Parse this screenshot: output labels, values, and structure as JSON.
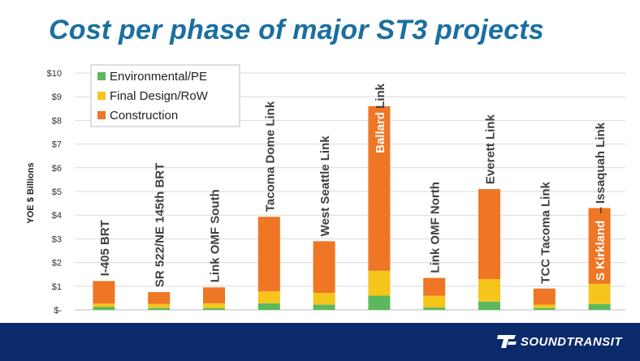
{
  "slide": {
    "title": "Cost per phase of major ST3 projects"
  },
  "footer": {
    "logo_text": "SOUNDTRANSIT"
  },
  "colors": {
    "title": "#1a6fa0",
    "footer_band": "#0a2a6b",
    "environmental": "#5cb85c",
    "final_design": "#f6c51c",
    "construction": "#ee7625"
  },
  "chart_data": {
    "type": "bar",
    "stacked": true,
    "title": "",
    "xlabel": "",
    "ylabel": "YOE $ Billions",
    "ylim": [
      0,
      10
    ],
    "yticks": [
      "$-",
      "$1",
      "$2",
      "$3",
      "$4",
      "$5",
      "$6",
      "$7",
      "$8",
      "$9",
      "$10"
    ],
    "grid": true,
    "legend_position": "top-left",
    "categories": [
      "I-405 BRT",
      "SR 522/NE 145th BRT",
      "Link OMF South",
      "Tacoma Dome Link",
      "West Seattle Link",
      "Ballard Link",
      "Link OMF North",
      "Everett Link",
      "TCC Tacoma Link",
      "S Kirkland – Issaquah Link"
    ],
    "series": [
      {
        "name": "Environmental/PE",
        "color": "#5cb85c",
        "values": [
          0.12,
          0.08,
          0.08,
          0.28,
          0.22,
          0.6,
          0.1,
          0.35,
          0.08,
          0.25
        ]
      },
      {
        "name": "Final Design/RoW",
        "color": "#f6c51c",
        "values": [
          0.15,
          0.17,
          0.2,
          0.5,
          0.5,
          1.05,
          0.5,
          0.95,
          0.14,
          0.85
        ]
      },
      {
        "name": "Construction",
        "color": "#ee7625",
        "values": [
          0.95,
          0.5,
          0.67,
          3.15,
          2.18,
          6.95,
          0.75,
          3.8,
          0.68,
          3.2
        ]
      }
    ]
  }
}
